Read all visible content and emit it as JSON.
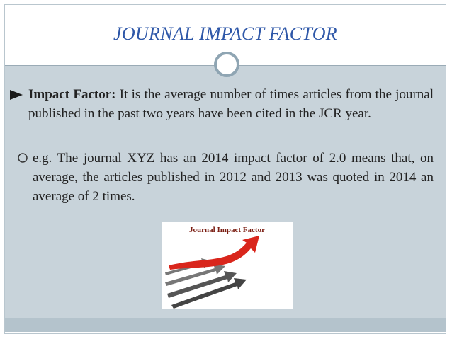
{
  "header": {
    "title": "JOURNAL IMPACT FACTOR"
  },
  "bullets": [
    {
      "label": "Impact Factor:",
      "text": " It is the average number of times articles from the journal published in the past two years have been cited in the JCR year."
    },
    {
      "text_before": "e.g. The journal XYZ has an ",
      "link": "2014 impact factor",
      "text_after": " of 2.0 means that, on average, the articles published in 2012 and 2013 was quoted in 2014 an average of 2 times."
    }
  ],
  "image": {
    "caption": "Journal Impact Factor"
  }
}
